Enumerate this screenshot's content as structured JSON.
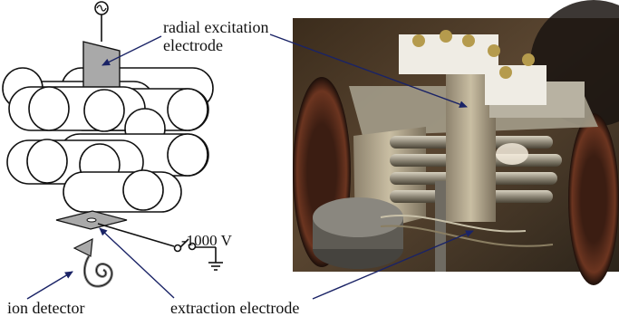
{
  "labels": {
    "radial_excitation_electrode": "radial excitation\nelectrode",
    "voltage": "-1000 V",
    "ion_detector": "ion detector",
    "extraction_electrode": "extraction electrode"
  },
  "icons": {
    "ac_source": "ac-source-icon",
    "ground": "ground-icon",
    "spiral_detector": "spiral-detector-icon"
  },
  "colors": {
    "arrow_navy": "#1a2366",
    "electrode_gray": "#a9a9a9",
    "line_black": "#111111"
  }
}
